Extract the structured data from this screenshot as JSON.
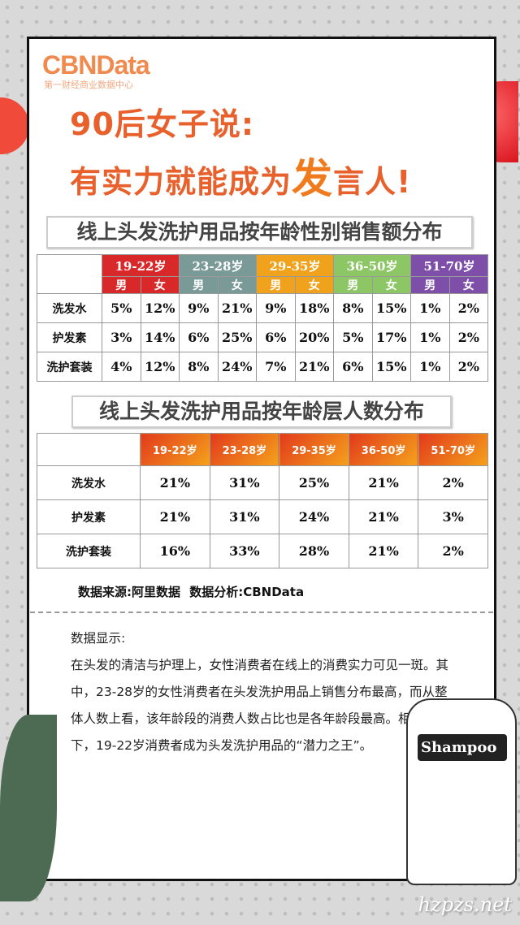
{
  "logo": {
    "name": "CBNData",
    "subtitle": "第一财经商业数据中心"
  },
  "headline": {
    "line1": "90后女子说:",
    "line2_pre": "有实力就能成为",
    "line2_highlight": "发",
    "line2_post": "言人!"
  },
  "colors": {
    "accent": "#e8612c",
    "age_19_22": "#d8282a",
    "age_23_28": "#7a9a98",
    "age_29_35": "#f0a21c",
    "age_36_50": "#8cc665",
    "age_51_70": "#7d4fa8"
  },
  "chart_data": [
    {
      "type": "table",
      "title": "线上头发洗护用品按年龄性别销售额分布",
      "age_groups": [
        "19-22岁",
        "23-28岁",
        "29-35岁",
        "36-50岁",
        "51-70岁"
      ],
      "genders": [
        "男",
        "女"
      ],
      "rows": [
        {
          "label": "洗发水",
          "values": [
            "5%",
            "12%",
            "9%",
            "21%",
            "9%",
            "18%",
            "8%",
            "15%",
            "1%",
            "2%"
          ]
        },
        {
          "label": "护发素",
          "values": [
            "3%",
            "14%",
            "6%",
            "25%",
            "6%",
            "20%",
            "5%",
            "17%",
            "1%",
            "2%"
          ]
        },
        {
          "label": "洗护套装",
          "values": [
            "4%",
            "12%",
            "8%",
            "24%",
            "7%",
            "21%",
            "6%",
            "15%",
            "1%",
            "2%"
          ]
        }
      ]
    },
    {
      "type": "table",
      "title": "线上头发洗护用品按年龄层人数分布",
      "columns": [
        "19-22岁",
        "23-28岁",
        "29-35岁",
        "36-50岁",
        "51-70岁"
      ],
      "rows": [
        {
          "label": "洗发水",
          "values": [
            "21%",
            "31%",
            "25%",
            "21%",
            "2%"
          ]
        },
        {
          "label": "护发素",
          "values": [
            "21%",
            "31%",
            "24%",
            "21%",
            "3%"
          ]
        },
        {
          "label": "洗护套装",
          "values": [
            "16%",
            "33%",
            "28%",
            "21%",
            "2%"
          ]
        }
      ]
    }
  ],
  "source": "数据来源:阿里数据   数据分析:CBNData",
  "paragraph": {
    "heading": "数据显示:",
    "body": "在头发的清洁与护理上，女性消费者在线上的消费实力可见一斑。其中，23-28岁的女性消费者在头发洗护用品上销售分布最高，而从整体人数上看，该年龄段的消费人数占比也是各年龄段最高。相比之下，19-22岁消费者成为头发洗护用品的“潜力之王”。"
  },
  "bottle_label": "Shampoo",
  "watermark": "hzpzs.net"
}
